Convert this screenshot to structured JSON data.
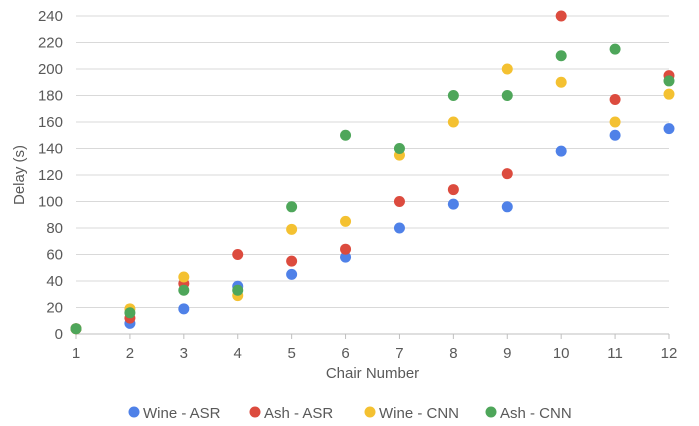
{
  "chart_data": {
    "type": "scatter",
    "title": "",
    "xlabel": "Chair Number",
    "ylabel": "Delay (s)",
    "xlim": [
      1,
      12
    ],
    "ylim": [
      0,
      240
    ],
    "x_ticks": [
      1,
      2,
      3,
      4,
      5,
      6,
      7,
      8,
      9,
      10,
      11,
      12
    ],
    "y_ticks": [
      0,
      20,
      40,
      60,
      80,
      100,
      120,
      140,
      160,
      180,
      200,
      220,
      240
    ],
    "grid": "horizontal",
    "legend_position": "bottom",
    "series": [
      {
        "name": "Wine - ASR",
        "color": "#4f81e8",
        "points": [
          [
            1,
            4
          ],
          [
            2,
            8
          ],
          [
            3,
            19
          ],
          [
            4,
            36
          ],
          [
            5,
            45
          ],
          [
            6,
            58
          ],
          [
            7,
            80
          ],
          [
            8,
            98
          ],
          [
            9,
            96
          ],
          [
            10,
            138
          ],
          [
            11,
            150
          ],
          [
            12,
            155
          ]
        ]
      },
      {
        "name": "Ash - ASR",
        "color": "#dc4b3e",
        "points": [
          [
            1,
            4
          ],
          [
            2,
            12
          ],
          [
            3,
            38
          ],
          [
            4,
            60
          ],
          [
            5,
            55
          ],
          [
            6,
            64
          ],
          [
            7,
            100
          ],
          [
            8,
            109
          ],
          [
            9,
            121
          ],
          [
            10,
            240
          ],
          [
            11,
            177
          ],
          [
            12,
            195
          ]
        ]
      },
      {
        "name": "Wine - CNN",
        "color": "#f4c131",
        "points": [
          [
            1,
            4
          ],
          [
            2,
            19
          ],
          [
            3,
            43
          ],
          [
            4,
            29
          ],
          [
            5,
            79
          ],
          [
            6,
            85
          ],
          [
            7,
            135
          ],
          [
            8,
            160
          ],
          [
            9,
            200
          ],
          [
            10,
            190
          ],
          [
            11,
            160
          ],
          [
            12,
            181
          ]
        ]
      },
      {
        "name": "Ash - CNN",
        "color": "#4ea65a",
        "points": [
          [
            1,
            4
          ],
          [
            2,
            16
          ],
          [
            3,
            33
          ],
          [
            4,
            33
          ],
          [
            5,
            96
          ],
          [
            6,
            150
          ],
          [
            7,
            140
          ],
          [
            8,
            180
          ],
          [
            9,
            180
          ],
          [
            10,
            210
          ],
          [
            11,
            215
          ],
          [
            12,
            191
          ]
        ]
      }
    ]
  }
}
